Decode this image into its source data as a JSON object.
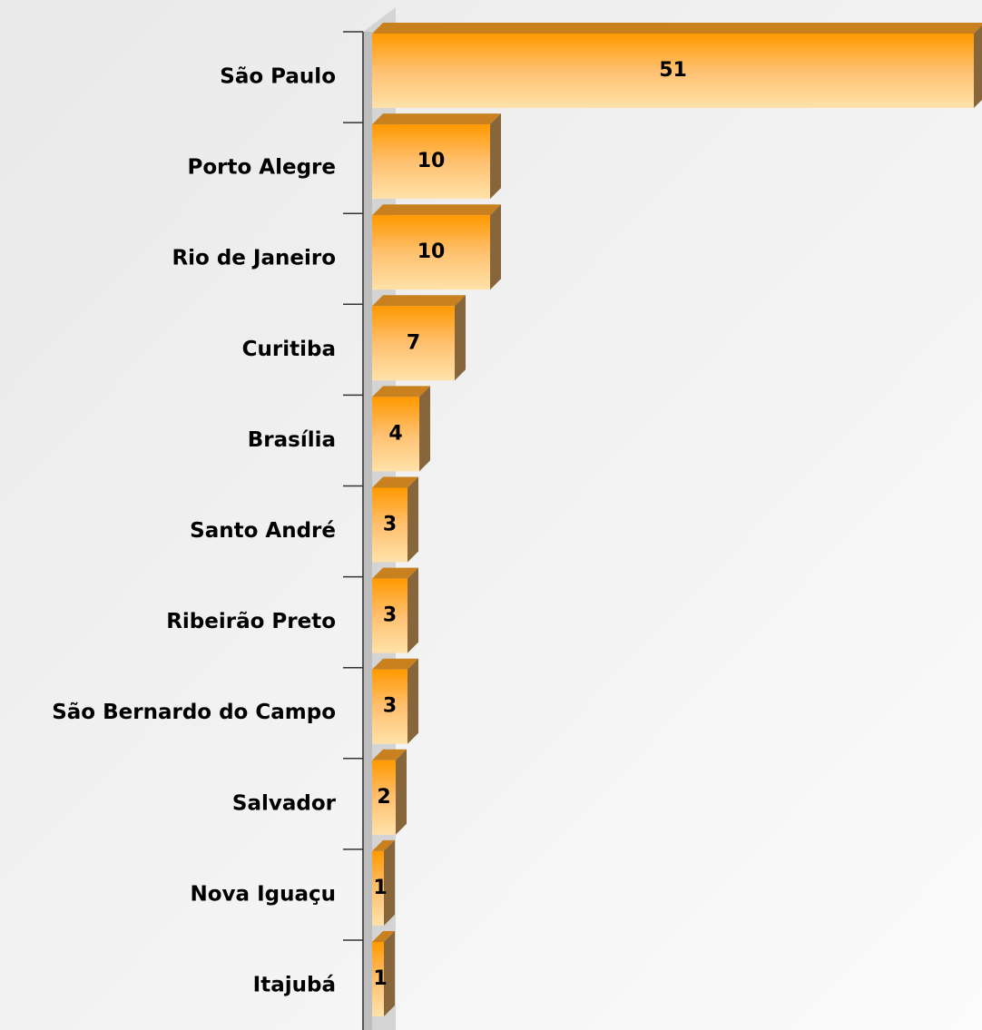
{
  "chart_data": {
    "type": "bar",
    "orientation": "horizontal",
    "categories": [
      "São Paulo",
      "Porto Alegre",
      "Rio de Janeiro",
      "Curitiba",
      "Brasília",
      "Santo André",
      "Ribeirão Preto",
      "São Bernardo do Campo",
      "Salvador",
      "Nova Iguaçu",
      "Itajubá"
    ],
    "values": [
      51,
      10,
      10,
      7,
      4,
      3,
      3,
      3,
      2,
      1,
      1
    ],
    "color": "#ff9900",
    "xlim": [
      0,
      51
    ]
  }
}
